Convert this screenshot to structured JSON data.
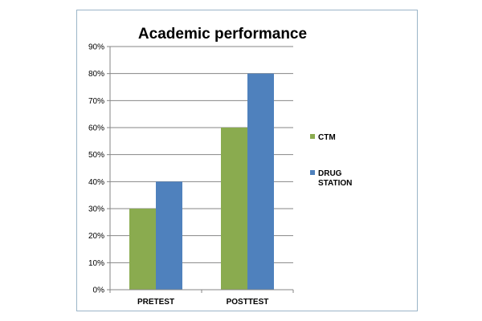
{
  "chart_data": {
    "type": "bar",
    "title": "Academic performance",
    "xlabel": "",
    "ylabel": "",
    "categories": [
      "PRETEST",
      "POSTTEST"
    ],
    "series": [
      {
        "name": "CTM",
        "values": [
          30,
          60
        ],
        "color": "#8aab4f"
      },
      {
        "name": "DRUG STATION",
        "legend_lines": [
          "DRUG",
          "STATION"
        ],
        "values": [
          40,
          80
        ],
        "color": "#4f81bd"
      }
    ],
    "ylim": [
      0,
      90
    ],
    "y_ticks": [
      "0%",
      "10%",
      "20%",
      "30%",
      "40%",
      "50%",
      "60%",
      "70%",
      "80%",
      "90%"
    ],
    "grid": true,
    "legend_position": "right"
  }
}
